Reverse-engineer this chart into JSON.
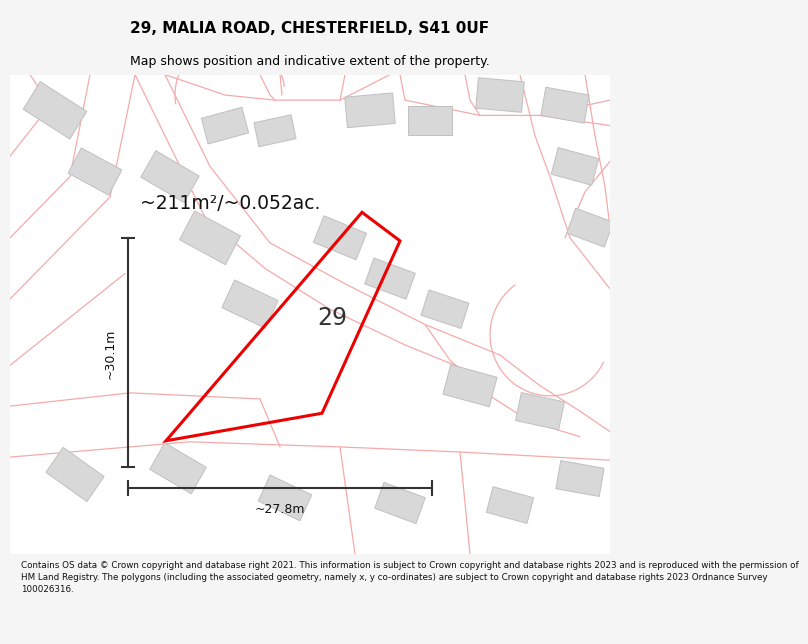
{
  "title_line1": "29, MALIA ROAD, CHESTERFIELD, S41 0UF",
  "title_line2": "Map shows position and indicative extent of the property.",
  "area_text": "~211m²/~0.052ac.",
  "label_29": "29",
  "dim_vertical": "~30.1m",
  "dim_horizontal": "~27.8m",
  "footer_text": "Contains OS data © Crown copyright and database right 2021. This information is subject to Crown copyright and database rights 2023 and is reproduced with the permission of\nHM Land Registry. The polygons (including the associated geometry, namely x, y\nco-ordinates) are subject to Crown copyright and database rights 2023 Ordnance Survey\n100026316.",
  "bg_color": "#f5f5f5",
  "map_bg": "#ffffff",
  "building_color": "#d8d8d8",
  "building_edge": "#c0c0c0",
  "road_line_color": "#f5aaaa",
  "highlight_color": "#ee0000",
  "title_color": "#000000"
}
